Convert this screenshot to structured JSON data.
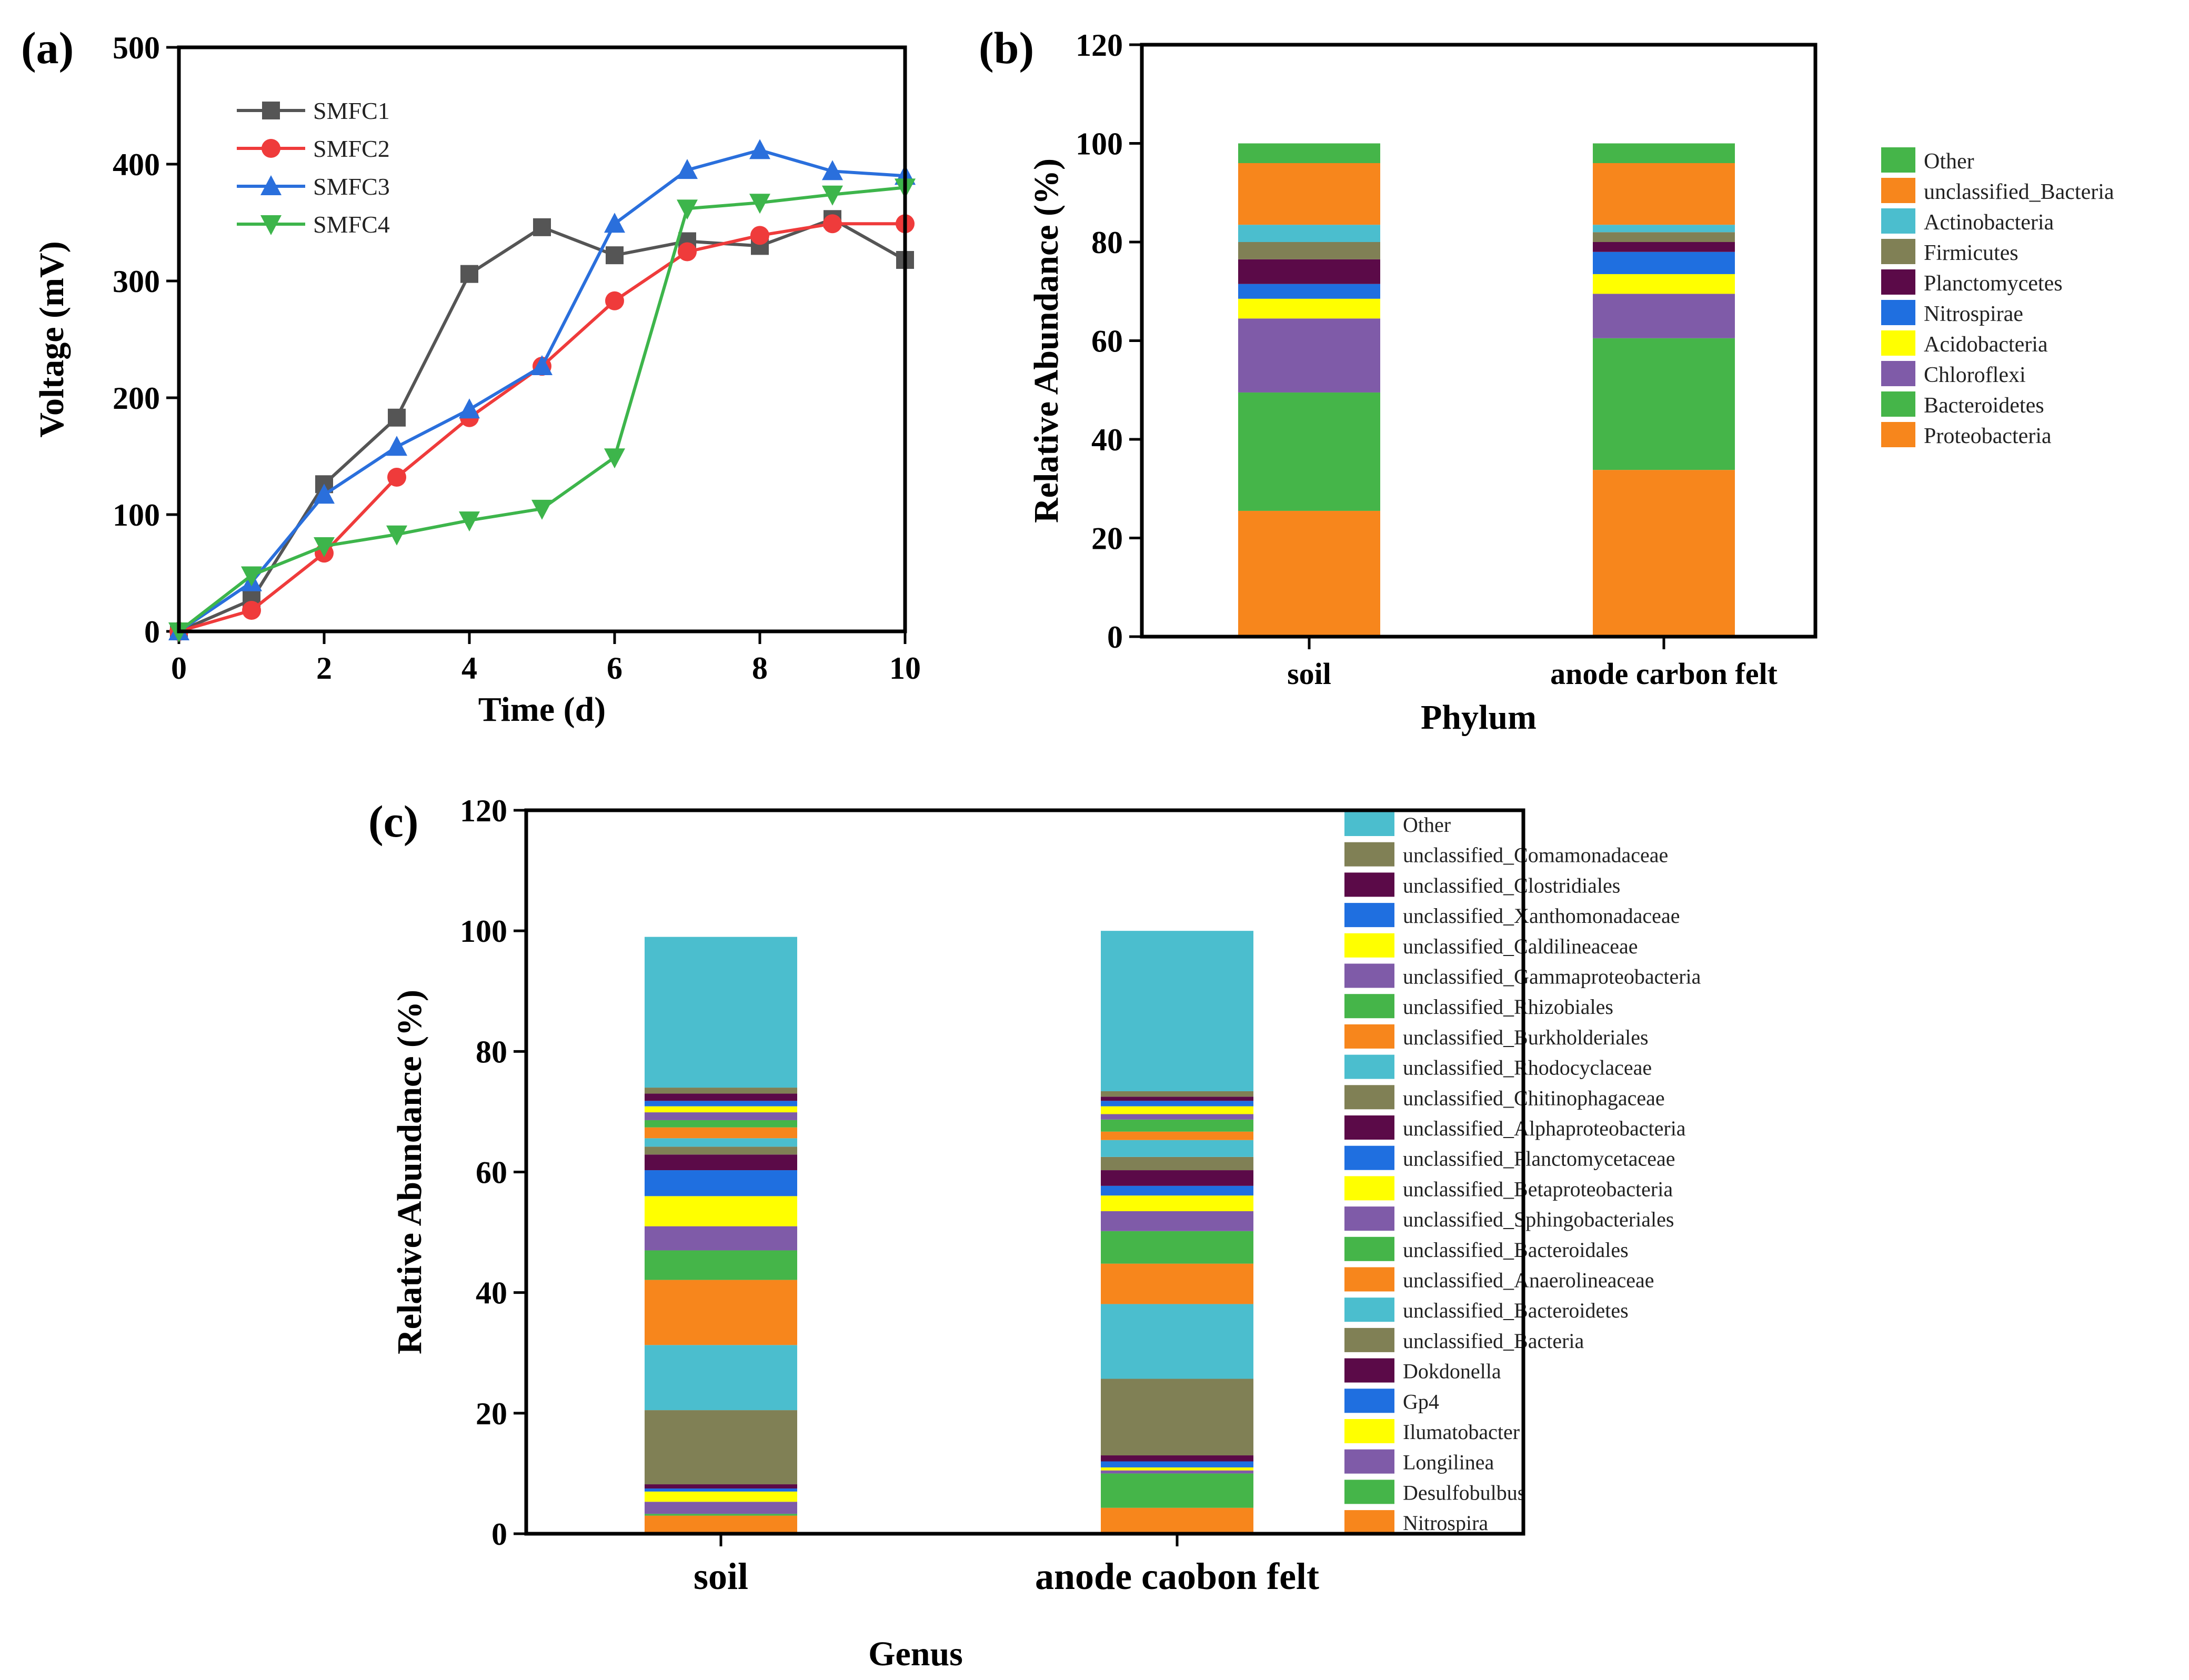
{
  "chart_data": [
    {
      "panel": "(a)",
      "type": "line",
      "xlabel": "Time (d)",
      "ylabel": "Voltage (mV)",
      "xlim": [
        0,
        10
      ],
      "ylim": [
        0,
        500
      ],
      "xticks": [
        0,
        2,
        4,
        6,
        8,
        10
      ],
      "yticks": [
        0,
        100,
        200,
        300,
        400,
        500
      ],
      "x": [
        0,
        1,
        2,
        3,
        4,
        5,
        6,
        7,
        8,
        9,
        10
      ],
      "series": [
        {
          "name": "SMFC1",
          "color": "#555555",
          "marker": "square",
          "values": [
            0,
            27,
            126,
            183,
            306,
            346,
            322,
            334,
            330,
            353,
            318
          ]
        },
        {
          "name": "SMFC2",
          "color": "#ef3b3b",
          "marker": "circle",
          "values": [
            0,
            18,
            67,
            132,
            183,
            227,
            283,
            325,
            339,
            349,
            349
          ]
        },
        {
          "name": "SMFC3",
          "color": "#2a6fdc",
          "marker": "triangle-up",
          "values": [
            0,
            42,
            117,
            158,
            190,
            227,
            349,
            395,
            412,
            394,
            390
          ]
        },
        {
          "name": "SMFC4",
          "color": "#3db54b",
          "marker": "triangle-down",
          "values": [
            0,
            48,
            73,
            83,
            95,
            105,
            149,
            362,
            367,
            374,
            380
          ]
        }
      ]
    },
    {
      "panel": "(b)",
      "type": "bar",
      "stacked": true,
      "xlabel": "Phylum",
      "ylabel": "Relative Abundance (%)",
      "ylim": [
        0,
        120
      ],
      "yticks": [
        0,
        20,
        40,
        60,
        80,
        100,
        120
      ],
      "categories": [
        "soil",
        "anode carbon felt"
      ],
      "legend_order": [
        "Other",
        "unclassified_Bacteria",
        "Actinobacteria",
        "Firmicutes",
        "Planctomycetes",
        "Nitrospirae",
        "Acidobacteria",
        "Chloroflexi",
        "Bacteroidetes",
        "Proteobacteria"
      ],
      "series": [
        {
          "name": "Proteobacteria",
          "color": "#f7861c",
          "values": [
            25.5,
            33.8
          ]
        },
        {
          "name": "Bacteroidetes",
          "color": "#45b549",
          "values": [
            24.0,
            26.7
          ]
        },
        {
          "name": "Chloroflexi",
          "color": "#7f5ba8",
          "values": [
            15.0,
            9.0
          ]
        },
        {
          "name": "Acidobacteria",
          "color": "#ffff00",
          "values": [
            4.0,
            4.0
          ]
        },
        {
          "name": "Nitrospirae",
          "color": "#1f6fe0",
          "values": [
            3.0,
            4.5
          ]
        },
        {
          "name": "Planctomycetes",
          "color": "#5b0a48",
          "values": [
            5.0,
            2.0
          ]
        },
        {
          "name": "Firmicutes",
          "color": "#808055",
          "values": [
            3.5,
            2.0
          ]
        },
        {
          "name": "Actinobacteria",
          "color": "#4bbece",
          "values": [
            3.5,
            1.5
          ]
        },
        {
          "name": "unclassified_Bacteria",
          "color": "#f7861c",
          "values": [
            12.5,
            12.5
          ]
        },
        {
          "name": "Other",
          "color": "#45b549",
          "values": [
            4.0,
            4.0
          ]
        }
      ]
    },
    {
      "panel": "(c)",
      "type": "bar",
      "stacked": true,
      "xlabel": "Genus",
      "ylabel": "Relative Abundance (%)",
      "ylim": [
        0,
        120
      ],
      "yticks": [
        0,
        20,
        40,
        60,
        80,
        100,
        120
      ],
      "categories": [
        "soil",
        "anode caobon felt"
      ],
      "legend_order": [
        "Other",
        "unclassified_Comamonadaceae",
        "unclassified_Clostridiales",
        "unclassified_Xanthomonadaceae",
        "unclassified_Caldilineaceae",
        "unclassified_Gammaproteobacteria",
        "unclassified_Rhizobiales",
        "unclassified_Burkholderiales",
        "unclassified_Rhodocyclaceae",
        "unclassified_Chitinophagaceae",
        "unclassified_Alphaproteobacteria",
        "unclassified_Planctomycetaceae",
        "unclassified_Betaproteobacteria",
        "unclassified_Sphingobacteriales",
        "unclassified_Bacteroidales",
        "unclassified_Anaerolineaceae",
        "unclassified_Bacteroidetes",
        "unclassified_Bacteria",
        "Dokdonella",
        "Gp4",
        "Ilumatobacter",
        "Longilinea",
        "Desulfobulbus",
        "Nitrospira"
      ],
      "series": [
        {
          "name": "Nitrospira",
          "color": "#f7861c",
          "values": [
            3.0,
            4.3
          ]
        },
        {
          "name": "Desulfobulbus",
          "color": "#45b549",
          "values": [
            0.3,
            5.7
          ]
        },
        {
          "name": "Longilinea",
          "color": "#7f5ba8",
          "values": [
            2.0,
            0.5
          ]
        },
        {
          "name": "Ilumatobacter",
          "color": "#ffff00",
          "values": [
            1.7,
            0.5
          ]
        },
        {
          "name": "Gp4",
          "color": "#1f6fe0",
          "values": [
            0.5,
            1.0
          ]
        },
        {
          "name": "Dokdonella",
          "color": "#5b0a48",
          "values": [
            0.7,
            1.0
          ]
        },
        {
          "name": "unclassified_Bacteria",
          "color": "#808055",
          "values": [
            12.3,
            12.7
          ]
        },
        {
          "name": "unclassified_Bacteroidetes",
          "color": "#4bbece",
          "values": [
            10.8,
            12.4
          ]
        },
        {
          "name": "unclassified_Anaerolineaceae",
          "color": "#f7861c",
          "values": [
            10.8,
            6.7
          ]
        },
        {
          "name": "unclassified_Bacteroidales",
          "color": "#45b549",
          "values": [
            4.9,
            5.4
          ]
        },
        {
          "name": "unclassified_Sphingobacteriales",
          "color": "#7f5ba8",
          "values": [
            4.0,
            3.3
          ]
        },
        {
          "name": "unclassified_Betaproteobacteria",
          "color": "#ffff00",
          "values": [
            5.0,
            2.6
          ]
        },
        {
          "name": "unclassified_Planctomycetaceae",
          "color": "#1f6fe0",
          "values": [
            4.3,
            1.6
          ]
        },
        {
          "name": "unclassified_Alphaproteobacteria",
          "color": "#5b0a48",
          "values": [
            2.6,
            2.6
          ]
        },
        {
          "name": "unclassified_Chitinophagaceae",
          "color": "#808055",
          "values": [
            1.3,
            2.2
          ]
        },
        {
          "name": "unclassified_Rhodocyclaceae",
          "color": "#4bbece",
          "values": [
            1.4,
            2.8
          ]
        },
        {
          "name": "unclassified_Burkholderiales",
          "color": "#f7861c",
          "values": [
            1.8,
            1.4
          ]
        },
        {
          "name": "unclassified_Rhizobiales",
          "color": "#45b549",
          "values": [
            1.2,
            2.0
          ]
        },
        {
          "name": "unclassified_Gammaproteobacteria",
          "color": "#7f5ba8",
          "values": [
            1.3,
            0.9
          ]
        },
        {
          "name": "unclassified_Caldilineaceae",
          "color": "#ffff00",
          "values": [
            1.0,
            1.3
          ]
        },
        {
          "name": "unclassified_Xanthomonadaceae",
          "color": "#1f6fe0",
          "values": [
            0.9,
            0.9
          ]
        },
        {
          "name": "unclassified_Clostridiales",
          "color": "#5b0a48",
          "values": [
            1.2,
            0.7
          ]
        },
        {
          "name": "unclassified_Comamonadaceae",
          "color": "#808055",
          "values": [
            1.0,
            0.9
          ]
        },
        {
          "name": "Other",
          "color": "#4bbece",
          "values": [
            25.0,
            26.6
          ]
        }
      ]
    }
  ]
}
